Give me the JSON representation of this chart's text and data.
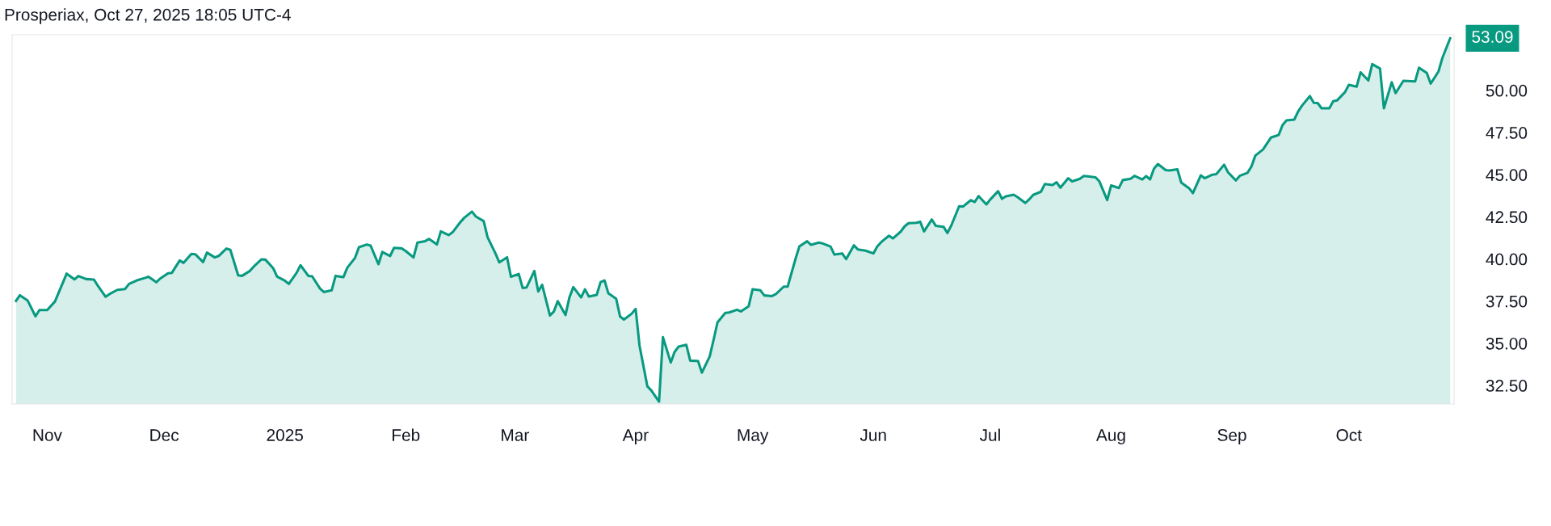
{
  "chart_data": {
    "type": "area",
    "annotations": [
      "Prosperiax, Oct 27, 2025 18:05 UTC-4",
      {
        "text": "53.09",
        "x": "2025-10-27",
        "y": 53.09
      }
    ],
    "x": [
      "2024-10-24",
      "2024-10-25",
      "2024-10-27",
      "2024-10-29",
      "2024-10-30",
      "2024-11-01",
      "2024-11-03",
      "2024-11-06",
      "2024-11-08",
      "2024-11-09",
      "2024-11-11",
      "2024-11-13",
      "2024-11-14",
      "2024-11-16",
      "2024-11-17",
      "2024-11-19",
      "2024-11-21",
      "2024-11-22",
      "2024-11-24",
      "2024-11-26",
      "2024-11-27",
      "2024-11-29",
      "2024-11-30",
      "2024-12-02",
      "2024-12-03",
      "2024-12-05",
      "2024-12-06",
      "2024-12-08",
      "2024-12-09",
      "2024-12-11",
      "2024-12-12",
      "2024-12-14",
      "2024-12-15",
      "2024-12-17",
      "2024-12-18",
      "2024-12-20",
      "2024-12-21",
      "2024-12-23",
      "2024-12-24",
      "2024-12-26",
      "2024-12-27",
      "2024-12-29",
      "2024-12-30",
      "2025-01-01",
      "2025-01-02",
      "2025-01-04",
      "2025-01-05",
      "2025-01-07",
      "2025-01-08",
      "2025-01-10",
      "2025-01-11",
      "2025-01-13",
      "2025-01-14",
      "2025-01-16",
      "2025-01-17",
      "2025-01-19",
      "2025-01-20",
      "2025-01-22",
      "2025-01-23",
      "2025-01-25",
      "2025-01-26",
      "2025-01-28",
      "2025-01-29",
      "2025-01-31",
      "2025-02-01",
      "2025-02-03",
      "2025-02-04",
      "2025-02-06",
      "2025-02-07",
      "2025-02-09",
      "2025-02-10",
      "2025-02-12",
      "2025-02-13",
      "2025-02-15",
      "2025-02-16",
      "2025-02-18",
      "2025-02-19",
      "2025-02-21",
      "2025-02-22",
      "2025-02-24",
      "2025-02-25",
      "2025-02-27",
      "2025-02-28",
      "2025-03-02",
      "2025-03-03",
      "2025-03-04",
      "2025-03-06",
      "2025-03-07",
      "2025-03-08",
      "2025-03-10",
      "2025-03-11",
      "2025-03-12",
      "2025-03-14",
      "2025-03-15",
      "2025-03-16",
      "2025-03-18",
      "2025-03-19",
      "2025-03-20",
      "2025-03-22",
      "2025-03-23",
      "2025-03-24",
      "2025-03-25",
      "2025-03-27",
      "2025-03-28",
      "2025-03-29",
      "2025-03-31",
      "2025-04-01",
      "2025-04-02",
      "2025-04-04",
      "2025-04-05",
      "2025-04-07",
      "2025-04-08",
      "2025-04-10",
      "2025-04-11",
      "2025-04-12",
      "2025-04-14",
      "2025-04-15",
      "2025-04-17",
      "2025-04-18",
      "2025-04-20",
      "2025-04-21",
      "2025-04-22",
      "2025-04-24",
      "2025-04-25",
      "2025-04-27",
      "2025-04-28",
      "2025-04-30",
      "2025-05-01",
      "2025-05-03",
      "2025-05-04",
      "2025-05-06",
      "2025-05-07",
      "2025-05-09",
      "2025-05-10",
      "2025-05-12",
      "2025-05-13",
      "2025-05-15",
      "2025-05-16",
      "2025-05-18",
      "2025-05-19",
      "2025-05-21",
      "2025-05-22",
      "2025-05-24",
      "2025-05-25",
      "2025-05-27",
      "2025-05-28",
      "2025-05-30",
      "2025-06-01",
      "2025-06-02",
      "2025-06-03",
      "2025-06-05",
      "2025-06-06",
      "2025-06-08",
      "2025-06-09",
      "2025-06-10",
      "2025-06-12",
      "2025-06-13",
      "2025-06-14",
      "2025-06-16",
      "2025-06-17",
      "2025-06-19",
      "2025-06-20",
      "2025-06-21",
      "2025-06-23",
      "2025-06-24",
      "2025-06-26",
      "2025-06-27",
      "2025-06-28",
      "2025-06-30",
      "2025-07-01",
      "2025-07-03",
      "2025-07-04",
      "2025-07-05",
      "2025-07-07",
      "2025-07-08",
      "2025-07-10",
      "2025-07-11",
      "2025-07-12",
      "2025-07-14",
      "2025-07-15",
      "2025-07-17",
      "2025-07-18",
      "2025-07-19",
      "2025-07-21",
      "2025-07-22",
      "2025-07-24",
      "2025-07-25",
      "2025-07-26",
      "2025-07-28",
      "2025-07-29",
      "2025-07-31",
      "2025-08-01",
      "2025-08-03",
      "2025-08-04",
      "2025-08-06",
      "2025-08-07",
      "2025-08-09",
      "2025-08-10",
      "2025-08-11",
      "2025-08-12",
      "2025-08-13",
      "2025-08-15",
      "2025-08-16",
      "2025-08-18",
      "2025-08-19",
      "2025-08-21",
      "2025-08-22",
      "2025-08-24",
      "2025-08-25",
      "2025-08-27",
      "2025-08-28",
      "2025-08-30",
      "2025-08-31",
      "2025-09-02",
      "2025-09-03",
      "2025-09-05",
      "2025-09-06",
      "2025-09-07",
      "2025-09-09",
      "2025-09-10",
      "2025-09-11",
      "2025-09-13",
      "2025-09-14",
      "2025-09-15",
      "2025-09-17",
      "2025-09-18",
      "2025-09-19",
      "2025-09-21",
      "2025-09-22",
      "2025-09-23",
      "2025-09-24",
      "2025-09-26",
      "2025-09-27",
      "2025-09-28",
      "2025-09-30",
      "2025-10-01",
      "2025-10-03",
      "2025-10-04",
      "2025-10-06",
      "2025-10-07",
      "2025-10-09",
      "2025-10-10",
      "2025-10-12",
      "2025-10-13",
      "2025-10-15",
      "2025-10-16",
      "2025-10-18",
      "2025-10-19",
      "2025-10-21",
      "2025-10-22",
      "2025-10-24",
      "2025-10-25",
      "2025-10-27"
    ],
    "series": [
      {
        "color": "#089981",
        "values": [
          37.52,
          37.85,
          37.53,
          36.6,
          36.97,
          36.97,
          37.48,
          39.13,
          38.79,
          38.99,
          38.81,
          38.78,
          38.41,
          37.76,
          37.92,
          38.17,
          38.22,
          38.52,
          38.73,
          38.87,
          38.95,
          38.62,
          38.84,
          39.15,
          39.18,
          39.91,
          39.77,
          40.3,
          40.28,
          39.82,
          40.38,
          40.09,
          40.18,
          40.62,
          40.54,
          39.03,
          39.0,
          39.29,
          39.55,
          39.98,
          39.96,
          39.45,
          38.95,
          38.71,
          38.52,
          39.18,
          39.63,
          39.0,
          38.97,
          38.25,
          38.04,
          38.14,
          39.0,
          38.92,
          39.48,
          40.07,
          40.7,
          40.86,
          40.79,
          39.69,
          40.42,
          40.18,
          40.66,
          40.63,
          40.47,
          40.09,
          40.97,
          41.06,
          41.19,
          40.86,
          41.64,
          41.42,
          41.58,
          42.18,
          42.44,
          42.81,
          42.52,
          42.25,
          41.29,
          40.34,
          39.8,
          40.1,
          38.95,
          39.11,
          38.28,
          38.31,
          39.29,
          38.07,
          38.47,
          36.65,
          36.88,
          37.5,
          36.68,
          37.72,
          38.33,
          37.72,
          38.2,
          37.77,
          37.87,
          38.63,
          38.73,
          37.96,
          37.64,
          36.59,
          36.41,
          36.76,
          37.04,
          34.85,
          32.45,
          32.21,
          31.54,
          35.36,
          33.86,
          34.49,
          34.8,
          34.91,
          33.97,
          33.95,
          33.26,
          34.22,
          35.21,
          36.24,
          36.8,
          36.83,
          36.99,
          36.89,
          37.2,
          38.2,
          38.14,
          37.84,
          37.8,
          37.92,
          38.36,
          38.36,
          39.99,
          40.74,
          41.05,
          40.84,
          40.97,
          40.92,
          40.74,
          40.26,
          40.33,
          39.99,
          40.81,
          40.57,
          40.49,
          40.33,
          40.74,
          41.0,
          41.38,
          41.22,
          41.62,
          41.93,
          42.12,
          42.15,
          42.21,
          41.64,
          42.34,
          41.97,
          41.91,
          41.54,
          41.99,
          43.13,
          43.11,
          43.49,
          43.38,
          43.73,
          43.24,
          43.53,
          44.02,
          43.57,
          43.72,
          43.81,
          43.67,
          43.32,
          43.54,
          43.8,
          43.99,
          44.45,
          44.39,
          44.55,
          44.23,
          44.79,
          44.6,
          44.76,
          44.93,
          44.9,
          44.84,
          44.6,
          43.49,
          44.36,
          44.21,
          44.68,
          44.76,
          44.93,
          44.72,
          44.92,
          44.72,
          45.36,
          45.63,
          45.27,
          45.25,
          45.32,
          44.53,
          44.2,
          43.91,
          44.96,
          44.79,
          45.0,
          45.03,
          45.59,
          45.14,
          44.66,
          44.93,
          45.11,
          45.48,
          46.13,
          46.5,
          46.85,
          47.2,
          47.36,
          47.95,
          48.22,
          48.27,
          48.75,
          49.1,
          49.66,
          49.26,
          49.25,
          48.94,
          48.94,
          49.36,
          49.41,
          49.89,
          50.33,
          50.22,
          51.07,
          50.59,
          51.56,
          51.29,
          48.94,
          50.48,
          49.84,
          50.57,
          50.56,
          50.53,
          51.34,
          51.04,
          50.4,
          51.12,
          51.92,
          53.09
        ]
      }
    ],
    "xlim": [
      "2024-10-23",
      "2025-10-28"
    ],
    "xticks": [
      {
        "value": "2024-11-01",
        "label": "Nov"
      },
      {
        "value": "2024-12-01",
        "label": "Dec"
      },
      {
        "value": "2025-01-01",
        "label": "2025"
      },
      {
        "value": "2025-02-01",
        "label": "Feb"
      },
      {
        "value": "2025-03-01",
        "label": "Mar"
      },
      {
        "value": "2025-04-01",
        "label": "Apr"
      },
      {
        "value": "2025-05-01",
        "label": "May"
      },
      {
        "value": "2025-06-01",
        "label": "Jun"
      },
      {
        "value": "2025-07-01",
        "label": "Jul"
      },
      {
        "value": "2025-08-01",
        "label": "Aug"
      },
      {
        "value": "2025-09-01",
        "label": "Sep"
      },
      {
        "value": "2025-10-01",
        "label": "Oct"
      }
    ],
    "ylim": [
      31.4,
      53.3
    ],
    "yticks": [
      {
        "value": 32.5,
        "label": "32.50"
      },
      {
        "value": 35,
        "label": "35.00"
      },
      {
        "value": 37.5,
        "label": "37.50"
      },
      {
        "value": 40,
        "label": "40.00"
      },
      {
        "value": 42.5,
        "label": "42.50"
      },
      {
        "value": 45,
        "label": "45.00"
      },
      {
        "value": 47.5,
        "label": "47.50"
      },
      {
        "value": 50,
        "label": "50.00"
      }
    ],
    "grid": false
  }
}
